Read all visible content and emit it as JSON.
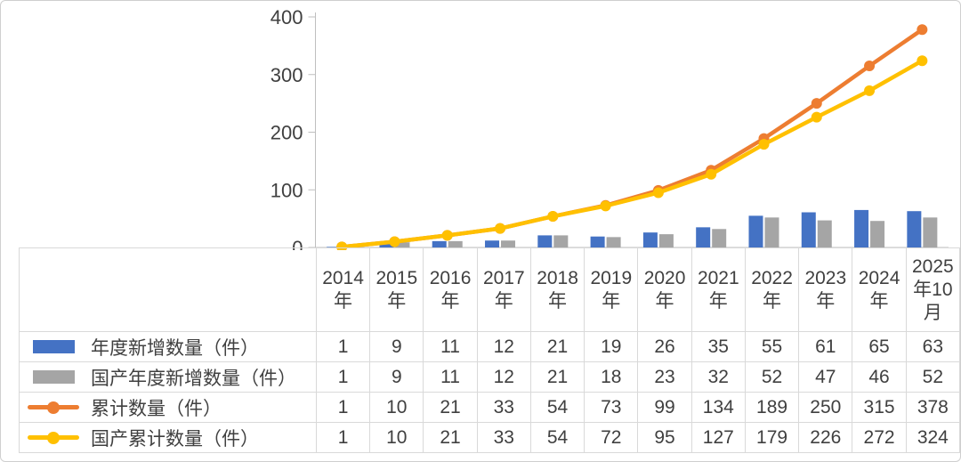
{
  "colors": {
    "text": "#404040",
    "axis_line": "#BFBFBF",
    "table_border": "#D9D9D9",
    "background": "#FFFFFF",
    "bar_blue": "#4472C4",
    "bar_gray": "#A5A5A5",
    "line_orange": "#ED7D31",
    "line_yellow": "#FFC000"
  },
  "chart_data": {
    "type": "combo-bar-line",
    "categories": [
      [
        "2014",
        "年"
      ],
      [
        "2015",
        "年"
      ],
      [
        "2016",
        "年"
      ],
      [
        "2017",
        "年"
      ],
      [
        "2018",
        "年"
      ],
      [
        "2019",
        "年"
      ],
      [
        "2020",
        "年"
      ],
      [
        "2021",
        "年"
      ],
      [
        "2022",
        "年"
      ],
      [
        "2023",
        "年"
      ],
      [
        "2024",
        "年"
      ],
      [
        "2025",
        "年10",
        "月"
      ]
    ],
    "series": [
      {
        "name": "年度新增数量（件）",
        "type": "bar",
        "color": "#4472C4",
        "values": [
          1,
          9,
          11,
          12,
          21,
          19,
          26,
          35,
          55,
          61,
          65,
          63
        ]
      },
      {
        "name": "国产年度新增数量（件）",
        "type": "bar",
        "color": "#A5A5A5",
        "values": [
          1,
          9,
          11,
          12,
          21,
          18,
          23,
          32,
          52,
          47,
          46,
          52
        ]
      },
      {
        "name": "累计数量（件）",
        "type": "line",
        "color": "#ED7D31",
        "values": [
          1,
          10,
          21,
          33,
          54,
          73,
          99,
          134,
          189,
          250,
          315,
          378
        ]
      },
      {
        "name": "国产累计数量（件）",
        "type": "line",
        "color": "#FFC000",
        "values": [
          1,
          10,
          21,
          33,
          54,
          72,
          95,
          127,
          179,
          226,
          272,
          324
        ]
      }
    ],
    "ylim": [
      0,
      400
    ],
    "yticks": [
      400,
      300,
      200,
      100,
      0
    ],
    "grid": false,
    "legend_position": "table-left"
  }
}
